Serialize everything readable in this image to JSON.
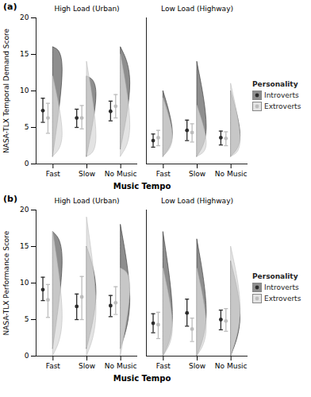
{
  "chart_data": [
    {
      "type": "violin",
      "title": "(a)",
      "y_label": "NASA-TLX Temporal Demand Score",
      "x_label": "Music Tempo",
      "ylim": [
        0,
        20
      ],
      "yticks": [
        0,
        5,
        10,
        15,
        20
      ],
      "facets": [
        "High Load (Urban)",
        "Low Load (Highway)"
      ],
      "categories": [
        "Fast",
        "Slow",
        "No Music"
      ],
      "legend_title": "Personality",
      "series": [
        {
          "name": "Introverts",
          "color": "#2b2b2b",
          "mean": [
            [
              7.3,
              6.3,
              7.2
            ],
            [
              3.2,
              4.6,
              3.6
            ]
          ],
          "ci_low": [
            [
              5.7,
              5.0,
              5.9
            ],
            [
              2.3,
              3.2,
              2.6
            ]
          ],
          "ci_high": [
            [
              9.0,
              7.5,
              8.6
            ],
            [
              4.1,
              6.0,
              4.5
            ]
          ],
          "violin_min": [
            [
              1,
              1,
              2
            ],
            [
              1,
              1,
              1
            ]
          ],
          "violin_mode": [
            [
              15,
              11,
              12
            ],
            [
              3.5,
              4,
              3
            ]
          ],
          "violin_max": [
            [
              16,
              12,
              16
            ],
            [
              10,
              14,
              10
            ]
          ]
        },
        {
          "name": "Extroverts",
          "color": "#bdbdbd",
          "mean": [
            [
              6.3,
              6.3,
              7.9
            ],
            [
              3.6,
              4.3,
              3.5
            ]
          ],
          "ci_low": [
            [
              4.2,
              4.8,
              6.3
            ],
            [
              2.5,
              3.0,
              2.5
            ]
          ],
          "ci_high": [
            [
              8.3,
              8.0,
              9.5
            ],
            [
              4.6,
              5.5,
              4.4
            ]
          ],
          "violin_min": [
            [
              1,
              1,
              1
            ],
            [
              1,
              1,
              1
            ]
          ],
          "violin_mode": [
            [
              3,
              2,
              4
            ],
            [
              3,
              2,
              2
            ]
          ],
          "violin_max": [
            [
              12,
              14,
              15
            ],
            [
              9,
              8,
              11
            ]
          ]
        }
      ]
    },
    {
      "type": "violin",
      "title": "(b)",
      "y_label": "NASA-TLX Performance Score",
      "x_label": "Music Tempo",
      "ylim": [
        0,
        20
      ],
      "yticks": [
        0,
        5,
        10,
        15,
        20
      ],
      "facets": [
        "High Load (Urban)",
        "Low Load (Highway)"
      ],
      "categories": [
        "Fast",
        "Slow",
        "No Music"
      ],
      "legend_title": "Personality",
      "series": [
        {
          "name": "Introverts",
          "color": "#2b2b2b",
          "mean": [
            [
              9.1,
              6.8,
              6.9
            ],
            [
              4.5,
              5.9,
              5.0
            ]
          ],
          "ci_low": [
            [
              7.6,
              5.0,
              5.4
            ],
            [
              3.2,
              4.1,
              3.6
            ]
          ],
          "ci_high": [
            [
              10.8,
              8.5,
              8.3
            ],
            [
              5.8,
              7.8,
              6.3
            ]
          ],
          "violin_min": [
            [
              1,
              1,
              1
            ],
            [
              0,
              0,
              0
            ]
          ],
          "violin_mode": [
            [
              15,
              9,
              7
            ],
            [
              4,
              5,
              5
            ]
          ],
          "violin_max": [
            [
              17,
              15,
              18
            ],
            [
              17,
              16,
              13
            ]
          ]
        },
        {
          "name": "Extroverts",
          "color": "#bdbdbd",
          "mean": [
            [
              7.7,
              8.1,
              7.3
            ],
            [
              4.3,
              3.7,
              4.8
            ]
          ],
          "ci_low": [
            [
              5.3,
              5.0,
              5.7
            ],
            [
              2.4,
              2.0,
              3.4
            ]
          ],
          "ci_high": [
            [
              9.8,
              10.9,
              9.5
            ],
            [
              6.0,
              5.2,
              6.5
            ]
          ],
          "violin_min": [
            [
              0,
              0,
              0
            ],
            [
              0,
              0,
              0
            ]
          ],
          "violin_mode": [
            [
              4,
              5,
              11
            ],
            [
              3,
              3,
              6
            ]
          ],
          "violin_max": [
            [
              17,
              19,
              12
            ],
            [
              12,
              12,
              15
            ]
          ]
        }
      ]
    }
  ]
}
